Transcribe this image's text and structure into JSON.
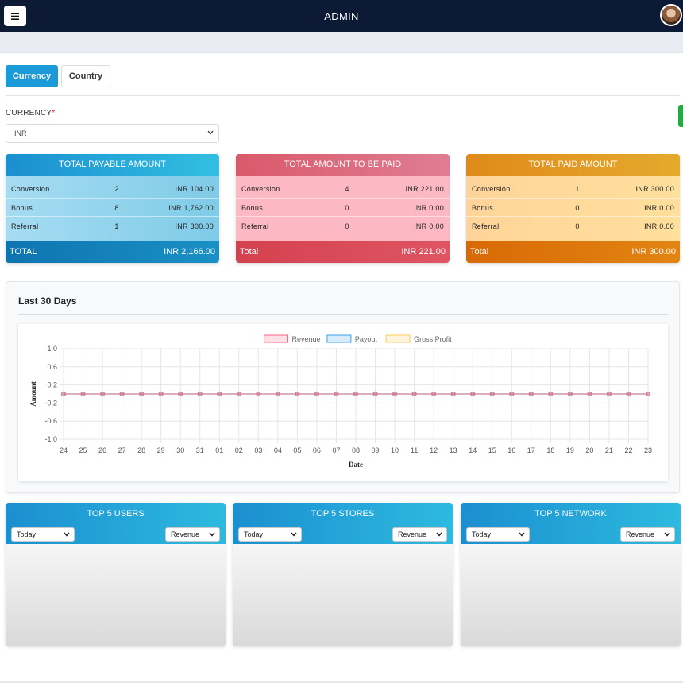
{
  "header": {
    "title": "ADMIN",
    "menu_icon": "hamburger-icon",
    "avatar": "user-avatar"
  },
  "tabs": [
    {
      "label": "Currency",
      "active": true
    },
    {
      "label": "Country",
      "active": false
    }
  ],
  "currency": {
    "label": "CURRENCY",
    "required_mark": "*",
    "selected": "INR"
  },
  "colors": {
    "navbar": "#0c1a36",
    "primary": "#1a9ad6",
    "success": "#28a745"
  },
  "cards": [
    {
      "title": "TOTAL PAYABLE AMOUNT",
      "rows": [
        {
          "label": "Conversion",
          "count": "2",
          "amount": "INR 104.00"
        },
        {
          "label": "Bonus",
          "count": "8",
          "amount": "INR 1,762.00"
        },
        {
          "label": "Referral",
          "count": "1",
          "amount": "INR 300.00"
        }
      ],
      "total_label": "TOTAL",
      "total_amount": "INR 2,166.00"
    },
    {
      "title": "TOTAL AMOUNT TO BE PAID",
      "rows": [
        {
          "label": "Conversion",
          "count": "4",
          "amount": "INR 221.00"
        },
        {
          "label": "Bonus",
          "count": "0",
          "amount": "INR 0.00"
        },
        {
          "label": "Referral",
          "count": "0",
          "amount": "INR 0.00"
        }
      ],
      "total_label": "Total",
      "total_amount": "INR 221.00"
    },
    {
      "title": "TOTAL PAID AMOUNT",
      "rows": [
        {
          "label": "Conversion",
          "count": "1",
          "amount": "INR 300.00"
        },
        {
          "label": "Bonus",
          "count": "0",
          "amount": "INR 0.00"
        },
        {
          "label": "Referral",
          "count": "0",
          "amount": "INR 0.00"
        }
      ],
      "total_label": "Total",
      "total_amount": "INR 300.00"
    }
  ],
  "chart_section": {
    "title": "Last 30 Days"
  },
  "chart_data": {
    "type": "line",
    "title": "",
    "xlabel": "Date",
    "ylabel": "Amount",
    "categories": [
      "24",
      "25",
      "26",
      "27",
      "28",
      "29",
      "30",
      "31",
      "01",
      "02",
      "03",
      "04",
      "05",
      "06",
      "07",
      "08",
      "09",
      "10",
      "11",
      "12",
      "13",
      "14",
      "15",
      "16",
      "17",
      "18",
      "19",
      "20",
      "21",
      "22",
      "23"
    ],
    "series": [
      {
        "name": "Revenue",
        "color": "#ff6384",
        "values": [
          0,
          0,
          0,
          0,
          0,
          0,
          0,
          0,
          0,
          0,
          0,
          0,
          0,
          0,
          0,
          0,
          0,
          0,
          0,
          0,
          0,
          0,
          0,
          0,
          0,
          0,
          0,
          0,
          0,
          0,
          0
        ]
      },
      {
        "name": "Payout",
        "color": "#36a2eb",
        "values": [
          0,
          0,
          0,
          0,
          0,
          0,
          0,
          0,
          0,
          0,
          0,
          0,
          0,
          0,
          0,
          0,
          0,
          0,
          0,
          0,
          0,
          0,
          0,
          0,
          0,
          0,
          0,
          0,
          0,
          0,
          0
        ]
      },
      {
        "name": "Gross Profit",
        "color": "#ffcd56",
        "values": [
          0,
          0,
          0,
          0,
          0,
          0,
          0,
          0,
          0,
          0,
          0,
          0,
          0,
          0,
          0,
          0,
          0,
          0,
          0,
          0,
          0,
          0,
          0,
          0,
          0,
          0,
          0,
          0,
          0,
          0,
          0
        ]
      }
    ],
    "ylim": [
      -1.0,
      1.0
    ],
    "yticks": [
      "1.0",
      "0.6",
      "0.2",
      "-0.2",
      "-0.6",
      "-1.0"
    ],
    "grid": true,
    "legend": "top"
  },
  "widgets": [
    {
      "title": "TOP 5 USERS",
      "period": "Today",
      "metric": "Revenue"
    },
    {
      "title": "TOP 5 STORES",
      "period": "Today",
      "metric": "Revenue"
    },
    {
      "title": "TOP 5 NETWORK",
      "period": "Today",
      "metric": "Revenue"
    }
  ]
}
